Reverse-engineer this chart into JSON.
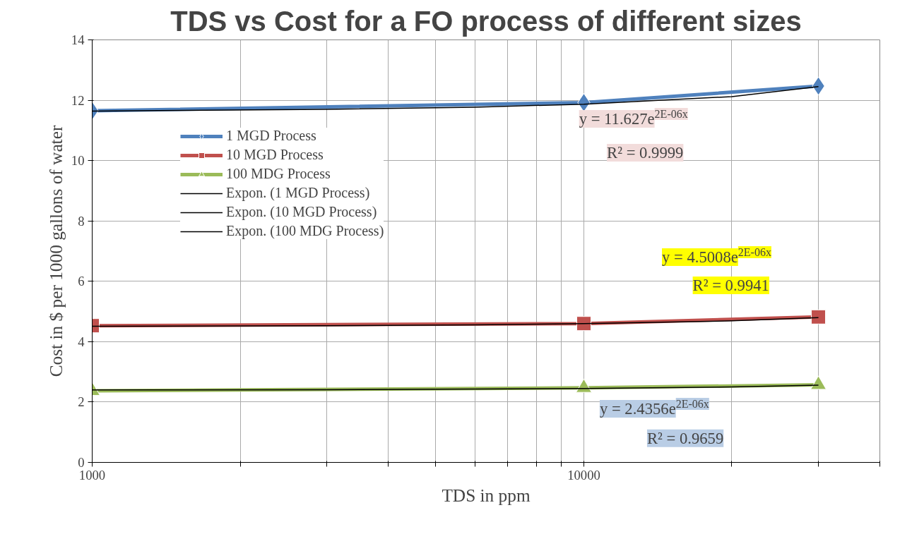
{
  "chart_data": {
    "type": "line",
    "title": "TDS vs Cost for a FO process of different sizes",
    "xlabel": "TDS in ppm",
    "ylabel": "Cost in $ per 1000 gallons of water",
    "x": [
      1000,
      10000,
      30000
    ],
    "log": "x",
    "xlim": [
      1000,
      40000
    ],
    "xticks": [
      1000,
      {
        "value": 2000,
        "label": null
      },
      {
        "value": 3000,
        "label": null
      },
      {
        "value": 4000,
        "label": null
      },
      {
        "value": 5000,
        "label": null
      },
      {
        "value": 6000,
        "label": null
      },
      {
        "value": 7000,
        "label": null
      },
      {
        "value": 8000,
        "label": null
      },
      {
        "value": 9000,
        "label": null
      },
      10000,
      {
        "value": 20000,
        "label": null
      },
      {
        "value": 30000,
        "label": null
      },
      {
        "value": 40000,
        "label": null
      }
    ],
    "ylim": [
      0,
      14
    ],
    "yticks": [
      0,
      2,
      4,
      6,
      8,
      10,
      12,
      14
    ],
    "grid": true,
    "legend": "top left",
    "series": [
      {
        "name": "1 MGD Process",
        "color": "#4f81bd",
        "marker": "diamond",
        "values": [
          11.65,
          11.92,
          12.47
        ]
      },
      {
        "name": "10 MGD Process",
        "color": "#c0504d",
        "marker": "square",
        "values": [
          4.53,
          4.6,
          4.82
        ]
      },
      {
        "name": "100 MDG Process",
        "color": "#9bbb59",
        "marker": "triangle",
        "values": [
          2.37,
          2.47,
          2.57
        ]
      },
      {
        "name": "Expon. (1 MGD Process)",
        "color": "#000000",
        "marker": "none",
        "x": [
          1000,
          3000,
          6000,
          10000,
          20000,
          30000
        ],
        "values": [
          11.64,
          11.7,
          11.77,
          11.87,
          12.12,
          12.45
        ]
      },
      {
        "name": "Expon. (10 MGD Process)",
        "color": "#000000",
        "marker": "none",
        "x": [
          1000,
          3000,
          6000,
          10000,
          20000,
          30000
        ],
        "values": [
          4.51,
          4.53,
          4.56,
          4.6,
          4.69,
          4.8
        ]
      },
      {
        "name": "Expon. (100 MDG Process)",
        "color": "#000000",
        "marker": "none",
        "x": [
          1000,
          3000,
          6000,
          10000,
          20000,
          30000
        ],
        "values": [
          2.4,
          2.41,
          2.43,
          2.45,
          2.5,
          2.56
        ]
      }
    ],
    "annotations": [
      "y = 11.627e$^{2E-06x}$",
      "R² = 0.9999",
      "y = 4.5008e$^{2E-06x}$",
      "R² = 0.9941",
      "y = 2.4356e$^{2E-06x}$",
      "R² = 0.9659"
    ]
  }
}
